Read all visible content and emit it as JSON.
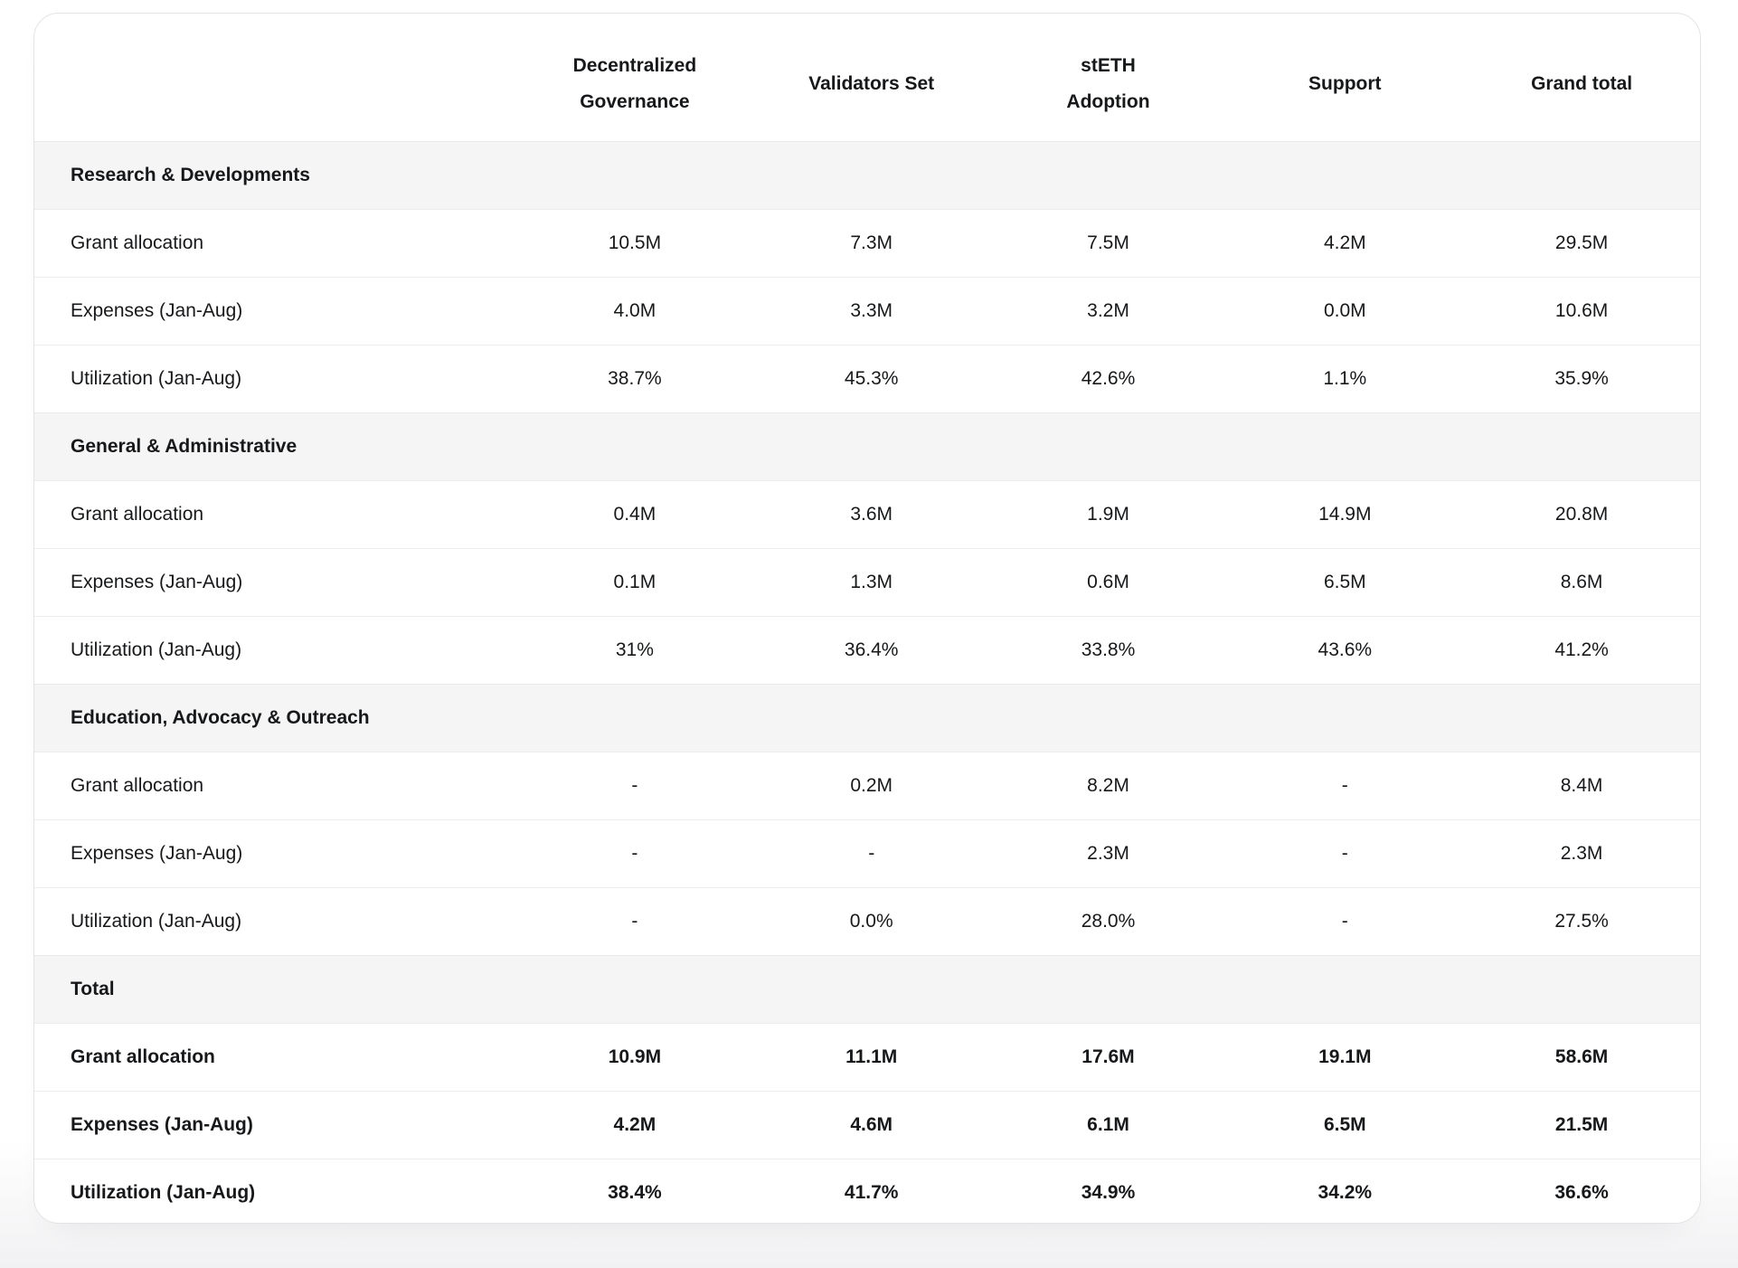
{
  "table": {
    "columns": [
      "Decentralized Governance",
      "Validators Set",
      "stETH Adoption",
      "Support",
      "Grand total"
    ],
    "sections": [
      {
        "title": "Research & Developments",
        "rows": [
          {
            "label": "Grant allocation",
            "values": [
              "10.5M",
              "7.3M",
              "7.5M",
              "4.2M",
              "29.5M"
            ]
          },
          {
            "label": "Expenses (Jan-Aug)",
            "values": [
              "4.0M",
              "3.3M",
              "3.2M",
              "0.0M",
              "10.6M"
            ]
          },
          {
            "label": "Utilization (Jan-Aug)",
            "values": [
              "38.7%",
              "45.3%",
              "42.6%",
              "1.1%",
              "35.9%"
            ]
          }
        ]
      },
      {
        "title": "General & Administrative",
        "rows": [
          {
            "label": "Grant allocation",
            "values": [
              "0.4M",
              "3.6M",
              "1.9M",
              "14.9M",
              "20.8M"
            ]
          },
          {
            "label": "Expenses (Jan-Aug)",
            "values": [
              "0.1M",
              "1.3M",
              "0.6M",
              "6.5M",
              "8.6M"
            ]
          },
          {
            "label": "Utilization (Jan-Aug)",
            "values": [
              "31%",
              "36.4%",
              "33.8%",
              "43.6%",
              "41.2%"
            ]
          }
        ]
      },
      {
        "title": "Education, Advocacy & Outreach",
        "rows": [
          {
            "label": "Grant allocation",
            "values": [
              "-",
              "0.2M",
              "8.2M",
              "-",
              "8.4M"
            ]
          },
          {
            "label": "Expenses (Jan-Aug)",
            "values": [
              "-",
              "-",
              "2.3M",
              "-",
              "2.3M"
            ]
          },
          {
            "label": "Utilization (Jan-Aug)",
            "values": [
              "-",
              "0.0%",
              "28.0%",
              "-",
              "27.5%"
            ]
          }
        ]
      },
      {
        "title": "Total",
        "emphasized": true,
        "rows": [
          {
            "label": "Grant allocation",
            "values": [
              "10.9M",
              "11.1M",
              "17.6M",
              "19.1M",
              "58.6M"
            ]
          },
          {
            "label": "Expenses (Jan-Aug)",
            "values": [
              "4.2M",
              "4.6M",
              "6.1M",
              "6.5M",
              "21.5M"
            ]
          },
          {
            "label": "Utilization (Jan-Aug)",
            "values": [
              "38.4%",
              "41.7%",
              "34.9%",
              "34.2%",
              "36.6%"
            ]
          }
        ]
      }
    ]
  },
  "colors": {
    "text": "#17181a",
    "card_background": "#ffffff",
    "card_border": "#e3e3e6",
    "section_row_background": "#f5f5f6",
    "row_divider": "#ececee",
    "page_background_bottom": "#f1f1f3"
  }
}
